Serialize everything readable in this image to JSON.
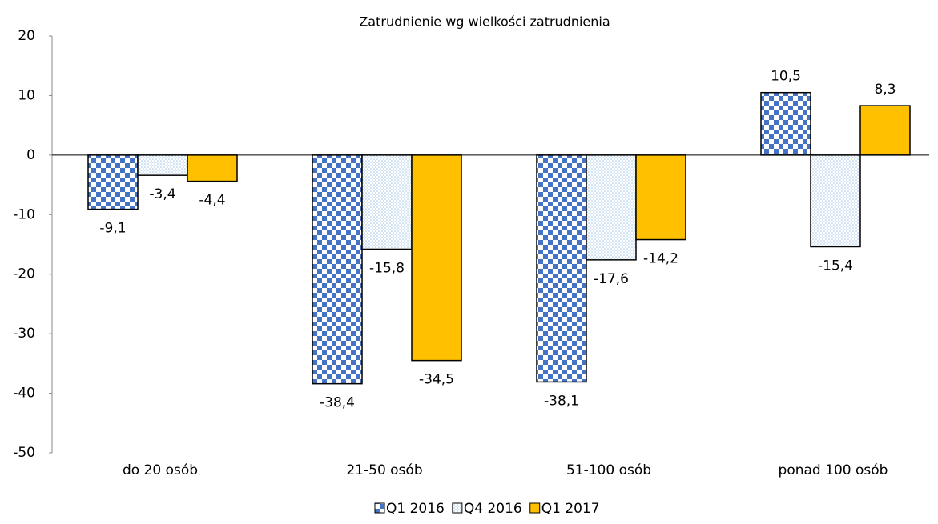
{
  "chart_data": {
    "type": "bar",
    "title": "Zatrudnienie wg wielkości zatrudnienia",
    "categories": [
      "do 20 osób",
      "21-50 osób",
      "51-100 osób",
      "ponad 100 osób"
    ],
    "series": [
      {
        "name": "Q1 2016",
        "color": "#4472c4",
        "pattern": "checker",
        "values": [
          -9.1,
          -38.4,
          -38.1,
          10.5
        ],
        "value_labels": [
          "-9,1",
          "-38,4",
          "-38,1",
          "10,5"
        ]
      },
      {
        "name": "Q4 2016",
        "color": "#9dc3e6",
        "pattern": "dots",
        "values": [
          -3.4,
          -15.8,
          -17.6,
          -15.4
        ],
        "value_labels": [
          "-3,4",
          "-15,8",
          "-17,6",
          "-15,4"
        ]
      },
      {
        "name": "Q1 2017",
        "color": "#ffc000",
        "pattern": "solid",
        "values": [
          -4.4,
          -34.5,
          -14.2,
          8.3
        ],
        "value_labels": [
          "-4,4",
          "-34,5",
          "-14,2",
          "8,3"
        ]
      }
    ],
    "ylim": [
      -50,
      20
    ],
    "yticks": [
      -50,
      -40,
      -30,
      -20,
      -10,
      0,
      10,
      20
    ],
    "grid": false,
    "legend": "bottom"
  }
}
